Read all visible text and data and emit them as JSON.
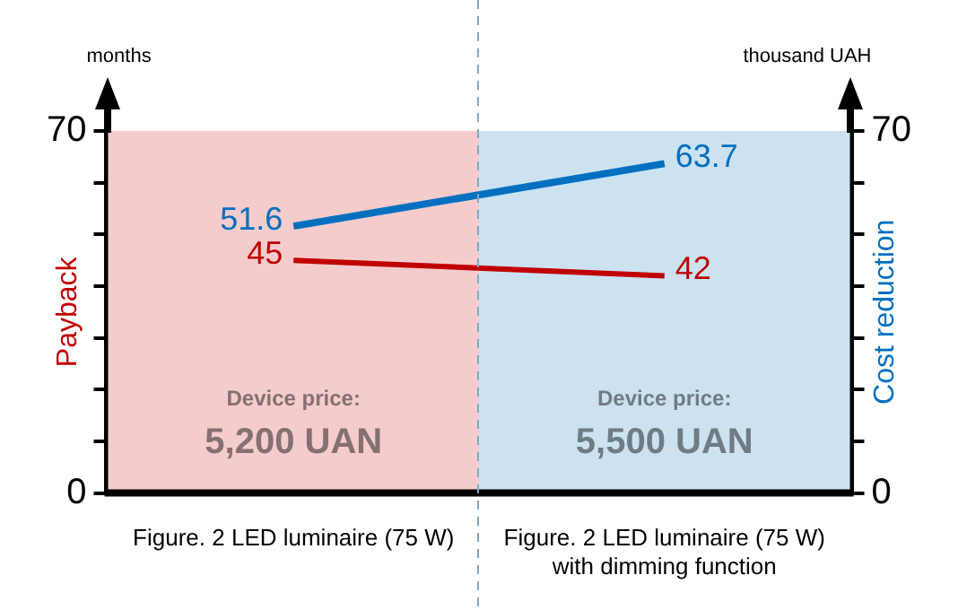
{
  "chart_data": {
    "type": "line",
    "categories": [
      "Figure. 2 LED luminaire (75 W)",
      "Figure. 2 LED luminaire (75 W) with dimming function"
    ],
    "series": [
      {
        "name": "Payback",
        "color": "#c00000",
        "values": [
          45,
          42
        ],
        "axis": "y"
      },
      {
        "name": "Cost reduction",
        "color": "#0070c0",
        "values": [
          51.6,
          63.7
        ],
        "axis": "y2"
      }
    ],
    "ylabel": "months",
    "y2label": "thousand UAH",
    "ylim": [
      0,
      70
    ],
    "yticks": [
      0,
      {
        "value": 10,
        "label": null
      },
      {
        "value": 20,
        "label": null
      },
      {
        "value": 30,
        "label": null
      },
      {
        "value": 40,
        "label": null
      },
      {
        "value": 50,
        "label": null
      },
      {
        "value": 60,
        "label": null
      },
      70
    ],
    "y2lim": [
      0,
      70
    ],
    "y2ticks": [
      0,
      {
        "value": 10,
        "label": null
      },
      {
        "value": 20,
        "label": null
      },
      {
        "value": 30,
        "label": null
      },
      {
        "value": 40,
        "label": null
      },
      {
        "value": 50,
        "label": null
      },
      {
        "value": 60,
        "label": null
      },
      70
    ],
    "bands": [
      {
        "axis": "x",
        "from": "Figure. 2 LED luminaire (75 W)",
        "to": "Figure. 2 LED luminaire (75 W)",
        "label": "Device price:\n5,200 UAN",
        "color": "#f4cccc"
      },
      {
        "axis": "x",
        "from": "Figure. 2 LED luminaire (75 W) with dimming function",
        "to": "Figure. 2 LED luminaire (75 W) with dimming function",
        "label": "Device price:\n5,500 UAN",
        "color": "#cce2f1"
      }
    ],
    "data_labels": true,
    "marker": "none",
    "line_style": "solid",
    "grid": false,
    "legend": false
  }
}
